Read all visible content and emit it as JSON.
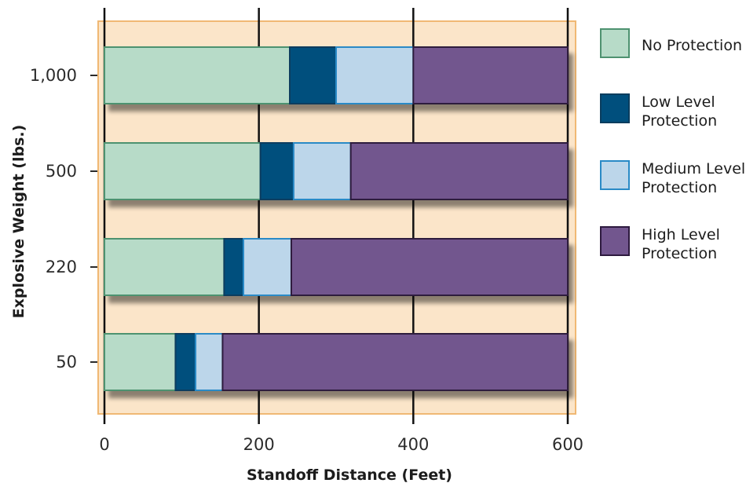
{
  "chart_data": {
    "type": "bar",
    "orientation": "horizontal",
    "stacked": true,
    "title": "",
    "xlabel": "Standoff Distance (Feet)",
    "ylabel": "Explosive Weight (lbs.)",
    "xlim": [
      0,
      600
    ],
    "xticks": [
      "0",
      "200",
      "400",
      "600"
    ],
    "grid": true,
    "legend_position": "right",
    "categories": [
      "1,000",
      "500",
      "220",
      "50"
    ],
    "series": [
      {
        "name": "No Protection",
        "lines": [
          "No Protection"
        ],
        "color": "#b7dbc8",
        "stroke": "#4e9270",
        "values": [
          240,
          202,
          155,
          92
        ]
      },
      {
        "name": "Low Level Protection",
        "lines": [
          "Low Level",
          "Protection"
        ],
        "color": "#004f7d",
        "stroke": "#0a3d5e",
        "values": [
          60,
          43,
          25,
          26
        ]
      },
      {
        "name": "Medium Level Protection",
        "lines": [
          "Medium Level",
          "Protection"
        ],
        "color": "#bcd6ea",
        "stroke": "#2a8ac6",
        "values": [
          100,
          74,
          62,
          35
        ]
      },
      {
        "name": "High Level Protection",
        "lines": [
          "High Level",
          "Protection"
        ],
        "color": "#72568e",
        "stroke": "#2d1a3e",
        "values": [
          200,
          281,
          358,
          447
        ]
      }
    ],
    "colors": {
      "plot_background": "#fbe5c9",
      "plot_border": "#f0b874",
      "gridline": "#111111"
    }
  }
}
